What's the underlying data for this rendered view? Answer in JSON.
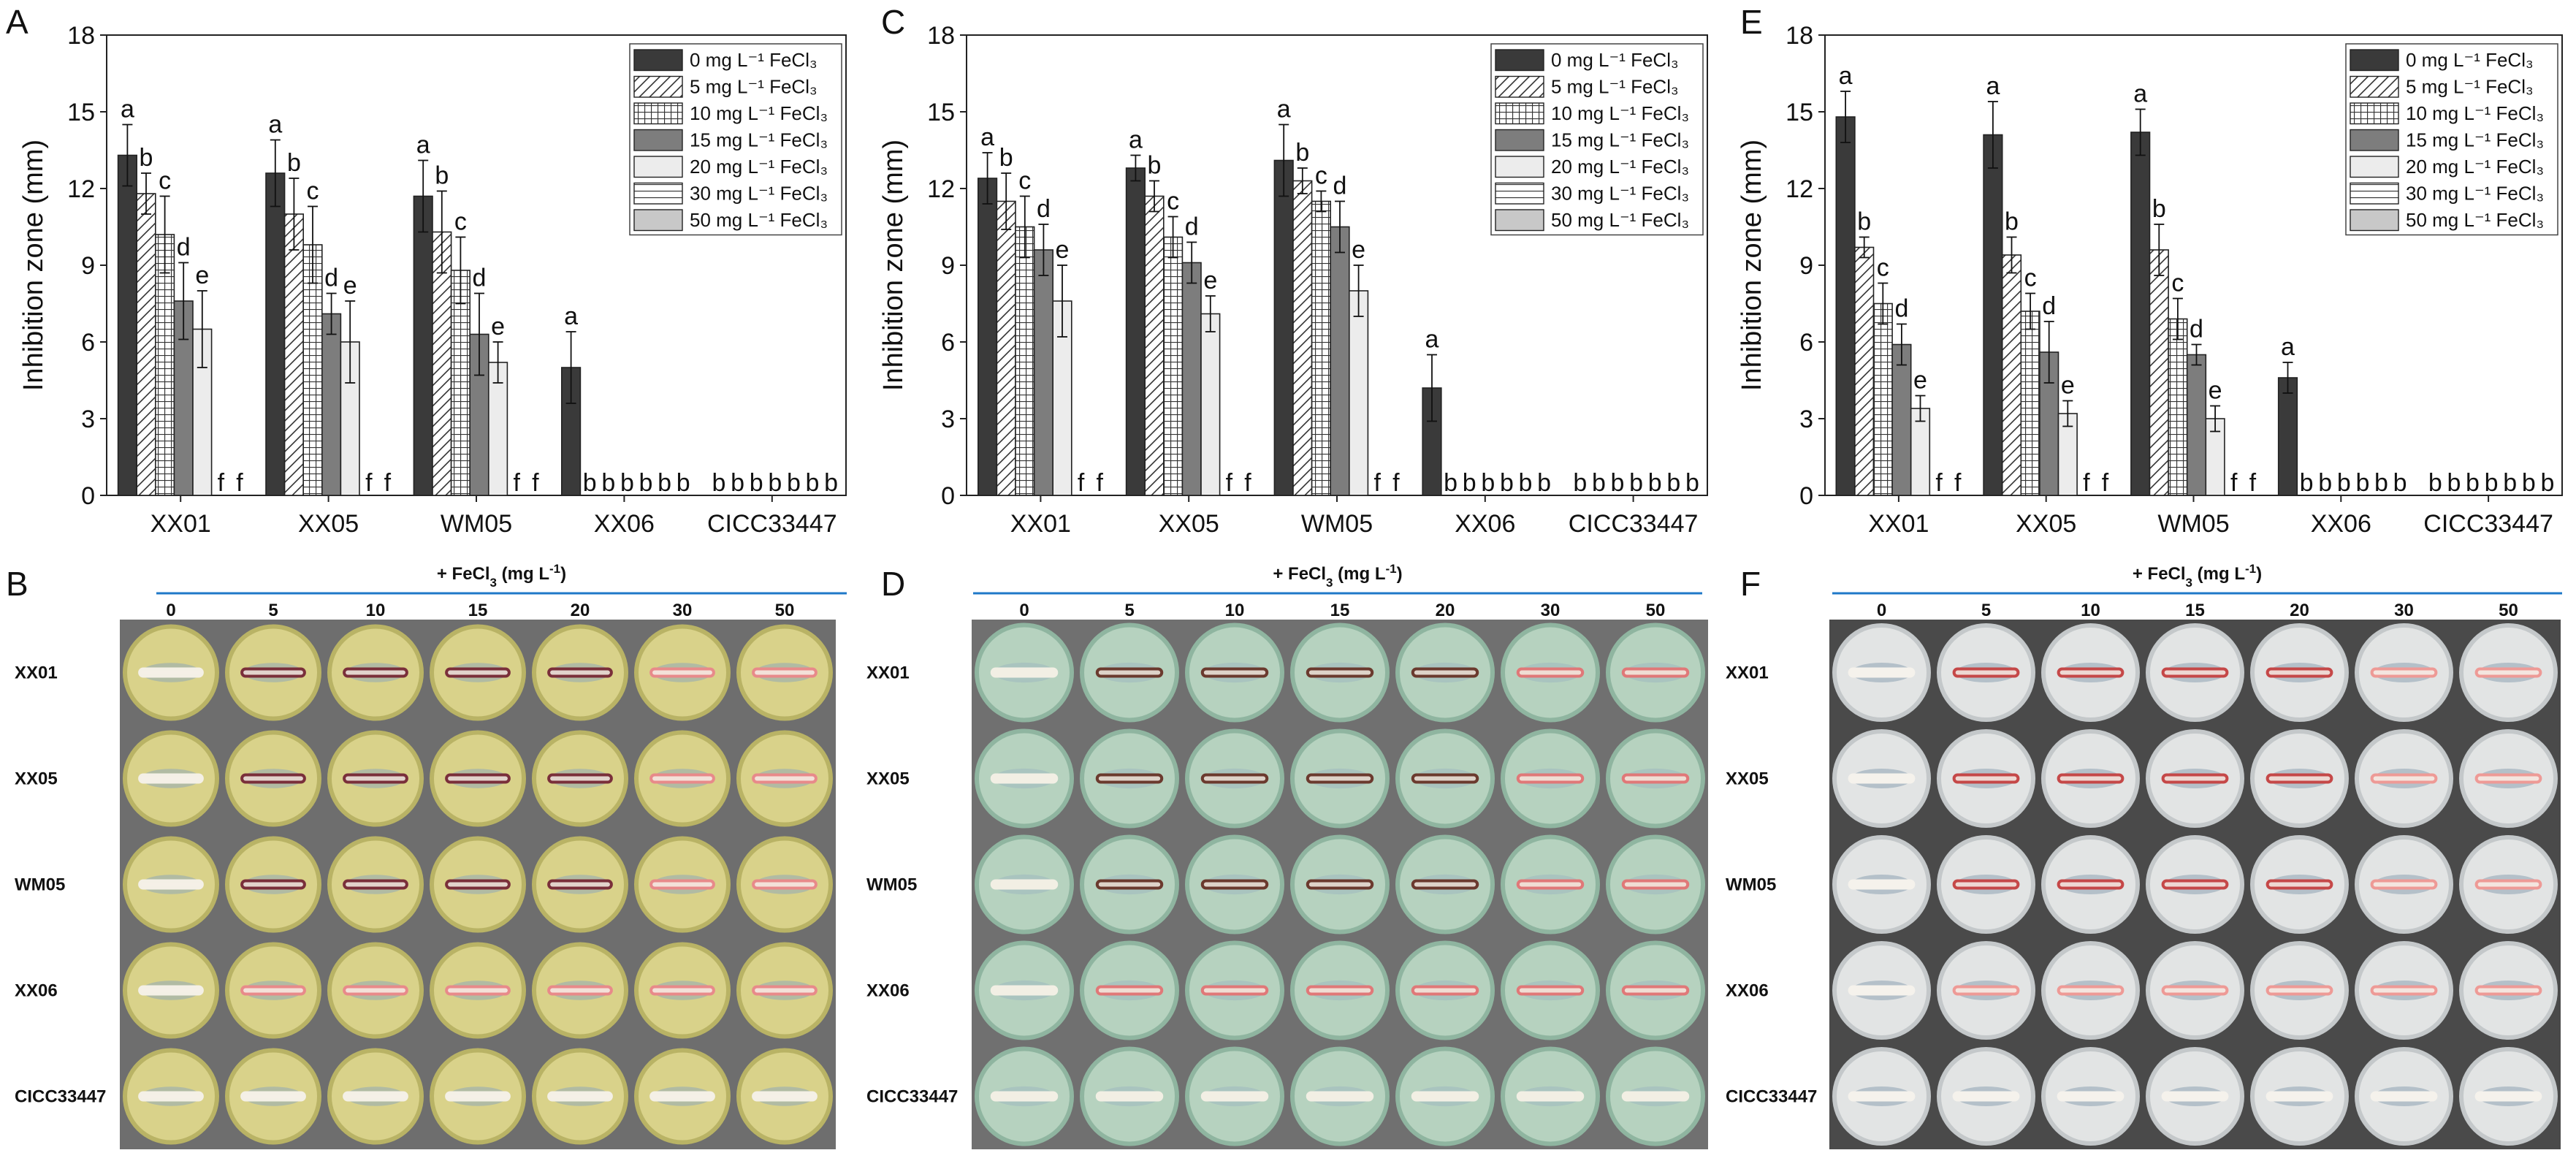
{
  "figure": {
    "dose_unit": "mg L⁻¹",
    "dose_header_text": "+ FeCl",
    "dose_header_sub": "3",
    "dose_header_unit": " (mg L",
    "dose_header_exp": "-1",
    "dose_header_close": ")"
  },
  "chart_data": [
    {
      "panel": "A",
      "type": "bar",
      "ylabel": "Inhibition zone (mm)",
      "xlabel": "",
      "ylim": [
        0,
        18
      ],
      "yticks": [
        0,
        3,
        6,
        9,
        12,
        15,
        18
      ],
      "legend_position": "top-right",
      "categories": [
        "XX01",
        "XX05",
        "WM05",
        "XX06",
        "CICC33447"
      ],
      "series": [
        {
          "name": "0 mg L⁻¹ FeCl₃",
          "conc": "0",
          "pattern": "solid-dark",
          "values": [
            13.3,
            12.6,
            11.7,
            5.0,
            0
          ],
          "errors": [
            1.2,
            1.3,
            1.4,
            1.4,
            0
          ],
          "letters": [
            "a",
            "a",
            "a",
            "a",
            "b"
          ]
        },
        {
          "name": "5 mg L⁻¹ FeCl₃",
          "conc": "5",
          "pattern": "hatch",
          "values": [
            11.8,
            11.0,
            10.3,
            0,
            0
          ],
          "errors": [
            0.8,
            1.4,
            1.6,
            0,
            0
          ],
          "letters": [
            "b",
            "b",
            "b",
            "b",
            "b"
          ]
        },
        {
          "name": "10 mg L⁻¹ FeCl₃",
          "conc": "10",
          "pattern": "grid",
          "values": [
            10.2,
            9.8,
            8.8,
            0,
            0
          ],
          "errors": [
            1.5,
            1.5,
            1.3,
            0,
            0
          ],
          "letters": [
            "c",
            "c",
            "c",
            "b",
            "b"
          ]
        },
        {
          "name": "15 mg L⁻¹ FeCl₃",
          "conc": "15",
          "pattern": "solid-mid",
          "values": [
            7.6,
            7.1,
            6.3,
            0,
            0
          ],
          "errors": [
            1.5,
            0.8,
            1.6,
            0,
            0
          ],
          "letters": [
            "d",
            "d",
            "d",
            "b",
            "b"
          ]
        },
        {
          "name": "20 mg L⁻¹ FeCl₃",
          "conc": "20",
          "pattern": "solid-light",
          "values": [
            6.5,
            6.0,
            5.2,
            0,
            0
          ],
          "errors": [
            1.5,
            1.6,
            0.8,
            0,
            0
          ],
          "letters": [
            "e",
            "e",
            "e",
            "b",
            "b"
          ]
        },
        {
          "name": "30 mg L⁻¹ FeCl₃",
          "conc": "30",
          "pattern": "hlines",
          "values": [
            0,
            0,
            0,
            0,
            0
          ],
          "errors": [
            0,
            0,
            0,
            0,
            0
          ],
          "letters": [
            "f",
            "f",
            "f",
            "b",
            "b"
          ]
        },
        {
          "name": "50 mg L⁻¹ FeCl₃",
          "conc": "50",
          "pattern": "solid-pale",
          "values": [
            0,
            0,
            0,
            0,
            0
          ],
          "errors": [
            0,
            0,
            0,
            0,
            0
          ],
          "letters": [
            "f",
            "f",
            "f",
            "b",
            "b"
          ]
        }
      ]
    },
    {
      "panel": "C",
      "type": "bar",
      "ylabel": "Inhibition zone (mm)",
      "xlabel": "",
      "ylim": [
        0,
        18
      ],
      "yticks": [
        0,
        3,
        6,
        9,
        12,
        15,
        18
      ],
      "legend_position": "top-right",
      "categories": [
        "XX01",
        "XX05",
        "WM05",
        "XX06",
        "CICC33447"
      ],
      "series": [
        {
          "name": "0 mg L⁻¹ FeCl₃",
          "conc": "0",
          "pattern": "solid-dark",
          "values": [
            12.4,
            12.8,
            13.1,
            4.2,
            0
          ],
          "errors": [
            1.0,
            0.5,
            1.4,
            1.3,
            0
          ],
          "letters": [
            "a",
            "a",
            "a",
            "a",
            "b"
          ]
        },
        {
          "name": "5 mg L⁻¹ FeCl₃",
          "conc": "5",
          "pattern": "hatch",
          "values": [
            11.5,
            11.7,
            12.3,
            0,
            0
          ],
          "errors": [
            1.1,
            0.6,
            0.5,
            0,
            0
          ],
          "letters": [
            "b",
            "b",
            "b",
            "b",
            "b"
          ]
        },
        {
          "name": "10 mg L⁻¹ FeCl₃",
          "conc": "10",
          "pattern": "grid",
          "values": [
            10.5,
            10.1,
            11.5,
            0,
            0
          ],
          "errors": [
            1.2,
            0.8,
            0.4,
            0,
            0
          ],
          "letters": [
            "c",
            "c",
            "c",
            "b",
            "b"
          ]
        },
        {
          "name": "15 mg L⁻¹ FeCl₃",
          "conc": "15",
          "pattern": "solid-mid",
          "values": [
            9.6,
            9.1,
            10.5,
            0,
            0
          ],
          "errors": [
            1.0,
            0.8,
            1.0,
            0,
            0
          ],
          "letters": [
            "d",
            "d",
            "d",
            "b",
            "b"
          ]
        },
        {
          "name": "20 mg L⁻¹ FeCl₃",
          "conc": "20",
          "pattern": "solid-light",
          "values": [
            7.6,
            7.1,
            8.0,
            0,
            0
          ],
          "errors": [
            1.4,
            0.7,
            1.0,
            0,
            0
          ],
          "letters": [
            "e",
            "e",
            "e",
            "b",
            "b"
          ]
        },
        {
          "name": "30 mg L⁻¹ FeCl₃",
          "conc": "30",
          "pattern": "hlines",
          "values": [
            0,
            0,
            0,
            0,
            0
          ],
          "errors": [
            0,
            0,
            0,
            0,
            0
          ],
          "letters": [
            "f",
            "f",
            "f",
            "b",
            "b"
          ]
        },
        {
          "name": "50 mg L⁻¹ FeCl₃",
          "conc": "50",
          "pattern": "solid-pale",
          "values": [
            0,
            0,
            0,
            0,
            0
          ],
          "errors": [
            0,
            0,
            0,
            0,
            0
          ],
          "letters": [
            "f",
            "f",
            "f",
            "b",
            "b"
          ]
        }
      ]
    },
    {
      "panel": "E",
      "type": "bar",
      "ylabel": "Inhibition zone (mm)",
      "xlabel": "",
      "ylim": [
        0,
        18
      ],
      "yticks": [
        0,
        3,
        6,
        9,
        12,
        15,
        18
      ],
      "legend_position": "top-right",
      "categories": [
        "XX01",
        "XX05",
        "WM05",
        "XX06",
        "CICC33447"
      ],
      "series": [
        {
          "name": "0 mg L⁻¹ FeCl₃",
          "conc": "0",
          "pattern": "solid-dark",
          "values": [
            14.8,
            14.1,
            14.2,
            4.6,
            0
          ],
          "errors": [
            1.0,
            1.3,
            0.9,
            0.6,
            0
          ],
          "letters": [
            "a",
            "a",
            "a",
            "a",
            "b"
          ]
        },
        {
          "name": "5 mg L⁻¹ FeCl₃",
          "conc": "5",
          "pattern": "hatch",
          "values": [
            9.7,
            9.4,
            9.6,
            0,
            0
          ],
          "errors": [
            0.4,
            0.7,
            1.0,
            0,
            0
          ],
          "letters": [
            "b",
            "b",
            "b",
            "b",
            "b"
          ]
        },
        {
          "name": "10 mg L⁻¹ FeCl₃",
          "conc": "10",
          "pattern": "grid",
          "values": [
            7.5,
            7.2,
            6.9,
            0,
            0
          ],
          "errors": [
            0.8,
            0.7,
            0.8,
            0,
            0
          ],
          "letters": [
            "c",
            "c",
            "c",
            "b",
            "b"
          ]
        },
        {
          "name": "15 mg L⁻¹ FeCl₃",
          "conc": "15",
          "pattern": "solid-mid",
          "values": [
            5.9,
            5.6,
            5.5,
            0,
            0
          ],
          "errors": [
            0.8,
            1.2,
            0.4,
            0,
            0
          ],
          "letters": [
            "d",
            "d",
            "d",
            "b",
            "b"
          ]
        },
        {
          "name": "20 mg L⁻¹ FeCl₃",
          "conc": "20",
          "pattern": "solid-light",
          "values": [
            3.4,
            3.2,
            3.0,
            0,
            0
          ],
          "errors": [
            0.5,
            0.5,
            0.5,
            0,
            0
          ],
          "letters": [
            "e",
            "e",
            "e",
            "b",
            "b"
          ]
        },
        {
          "name": "30 mg L⁻¹ FeCl₃",
          "conc": "30",
          "pattern": "hlines",
          "values": [
            0,
            0,
            0,
            0,
            0
          ],
          "errors": [
            0,
            0,
            0,
            0,
            0
          ],
          "letters": [
            "f",
            "f",
            "f",
            "b",
            "b"
          ]
        },
        {
          "name": "50 mg L⁻¹ FeCl₃",
          "conc": "50",
          "pattern": "solid-pale",
          "values": [
            0,
            0,
            0,
            0,
            0
          ],
          "errors": [
            0,
            0,
            0,
            0,
            0
          ],
          "letters": [
            "f",
            "f",
            "f",
            "b",
            "b"
          ]
        }
      ]
    }
  ],
  "plates": [
    {
      "panel": "B",
      "columns": [
        "0",
        "5",
        "10",
        "15",
        "20",
        "30",
        "50"
      ],
      "rows": [
        "XX01",
        "XX05",
        "WM05",
        "XX06",
        "CICC33447"
      ],
      "colors": {
        "frame": "#6e6e6e",
        "agar": "#d9d28a",
        "agar_edge": "#b9b365",
        "halo": "#8fa7b8",
        "streak": "#f4f0e6",
        "pigment": "#7a2f3a",
        "pink": "#e88a8a"
      }
    },
    {
      "panel": "D",
      "columns": [
        "0",
        "5",
        "10",
        "15",
        "20",
        "30",
        "50"
      ],
      "rows": [
        "XX01",
        "XX05",
        "WM05",
        "XX06",
        "CICC33447"
      ],
      "colors": {
        "frame": "#707070",
        "agar": "#b6d2bf",
        "agar_edge": "#8fb5a0",
        "halo": "#9fb8c0",
        "streak": "#f2efe4",
        "pigment": "#6b3a2e",
        "pink": "#e07878"
      }
    },
    {
      "panel": "F",
      "columns": [
        "0",
        "5",
        "10",
        "15",
        "20",
        "30",
        "50"
      ],
      "rows": [
        "XX01",
        "XX05",
        "WM05",
        "XX06",
        "CICC33447"
      ],
      "colors": {
        "frame": "#4a4a4a",
        "agar": "#e2e4e4",
        "agar_edge": "#c4c8ca",
        "halo": "#8ea3b2",
        "streak": "#f5f2ec",
        "pigment": "#c54848",
        "pink": "#ee9a96"
      }
    }
  ]
}
